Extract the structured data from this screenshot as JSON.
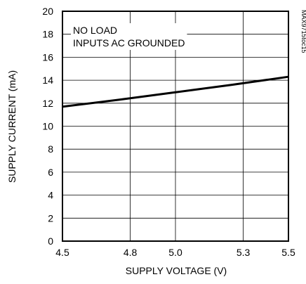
{
  "chart_data": {
    "type": "line",
    "title": "",
    "xlabel": "SUPPLY VOLTAGE (V)",
    "ylabel": "SUPPLY CURRENT (mA)",
    "xlim": [
      4.5,
      5.5
    ],
    "ylim": [
      0,
      20
    ],
    "x_ticks": [
      4.5,
      4.8,
      5.0,
      5.3,
      5.5
    ],
    "x_tick_labels": [
      "4.5",
      "4.8",
      "5.0",
      "5.3",
      "5.5"
    ],
    "y_ticks": [
      0,
      2,
      4,
      6,
      8,
      10,
      12,
      14,
      16,
      18,
      20
    ],
    "y_tick_labels": [
      "0",
      "2",
      "4",
      "6",
      "8",
      "10",
      "12",
      "14",
      "16",
      "18",
      "20"
    ],
    "grid": true,
    "annotations": [
      "NO LOAD",
      "INPUTS AC GROUNDED"
    ],
    "figure_id": "MAX9715toc15",
    "series": [
      {
        "x": [
          4.5,
          4.75,
          5.0,
          5.25,
          5.5
        ],
        "y": [
          11.7,
          12.3,
          12.95,
          13.6,
          14.3
        ]
      }
    ],
    "colors": {
      "line": "#000000",
      "grid": "#000000",
      "background": "#ffffff"
    }
  }
}
